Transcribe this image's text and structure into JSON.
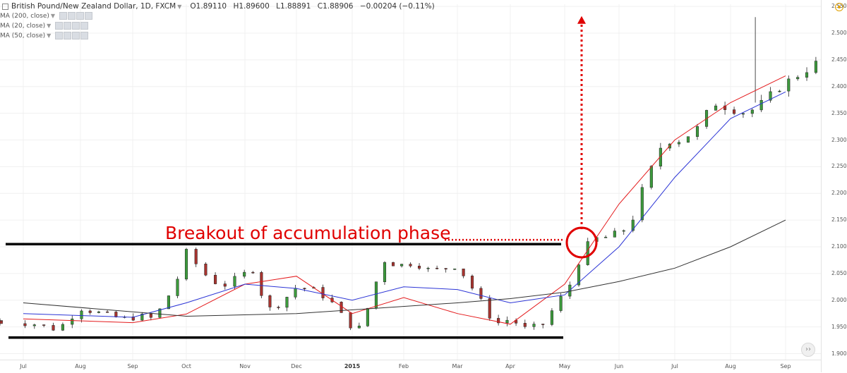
{
  "legend": {
    "symbol": "British Pound/New Zealand Dollar, 1D, FXCM",
    "open": "O1.89110",
    "high": "H1.89600",
    "low": "L1.88891",
    "close": "C1.88906",
    "change": "−0.00204 (−0.11%)",
    "ma_200": "MA (200, close)",
    "ma_20": "MA (20, close)",
    "ma_50": "MA (50, close)"
  },
  "annotation": {
    "label": "Breakout of accumulation phase",
    "color": "#e00000"
  },
  "colors": {
    "up_candle": "#3c9a3c",
    "down_candle": "#a8342f",
    "ma_20": "#e41a1c",
    "ma_50": "#2c35d6",
    "ma_200": "#333333",
    "support_resistance": "#000000"
  },
  "chart_data": {
    "type": "candlestick",
    "title": "British Pound/New Zealand Dollar, 1D, FXCM",
    "y_ticks": [
      "2.55000",
      "2.50000",
      "2.45000",
      "2.40000",
      "2.35000",
      "2.30000",
      "2.25000",
      "2.20000",
      "2.15000",
      "2.10000",
      "2.05000",
      "2.00000",
      "1.95000",
      "1.90000"
    ],
    "x_ticks": [
      "Jul",
      "Aug",
      "Sep",
      "Oct",
      "Nov",
      "Dec",
      "2015",
      "Feb",
      "Mar",
      "Apr",
      "May",
      "Jun",
      "Jul",
      "Aug",
      "Sep"
    ],
    "ylim": [
      1.9,
      2.55
    ],
    "resistance_level": 2.105,
    "support_level": 1.93,
    "series": [
      {
        "name": "MA (20, close)",
        "points": [
          [
            0,
            1.965
          ],
          [
            2,
            1.958
          ],
          [
            3,
            1.974
          ],
          [
            4,
            2.03
          ],
          [
            5,
            2.045
          ],
          [
            6,
            1.975
          ],
          [
            7,
            2.005
          ],
          [
            8,
            1.975
          ],
          [
            9,
            1.955
          ],
          [
            10,
            2.03
          ],
          [
            11,
            2.18
          ],
          [
            12,
            2.3
          ],
          [
            13,
            2.37
          ],
          [
            14,
            2.42
          ]
        ]
      },
      {
        "name": "MA (50, close)",
        "points": [
          [
            0,
            1.975
          ],
          [
            2,
            1.968
          ],
          [
            3,
            1.995
          ],
          [
            4,
            2.03
          ],
          [
            5,
            2.022
          ],
          [
            6,
            2.0
          ],
          [
            7,
            2.025
          ],
          [
            8,
            2.02
          ],
          [
            9,
            1.995
          ],
          [
            10,
            2.01
          ],
          [
            11,
            2.1
          ],
          [
            12,
            2.23
          ],
          [
            13,
            2.34
          ],
          [
            14,
            2.39
          ]
        ]
      },
      {
        "name": "MA (200, close)",
        "points": [
          [
            0,
            1.995
          ],
          [
            3,
            1.97
          ],
          [
            5,
            1.975
          ],
          [
            8,
            1.995
          ],
          [
            9,
            2.003
          ],
          [
            10,
            2.015
          ],
          [
            11,
            2.035
          ],
          [
            12,
            2.06
          ],
          [
            13,
            2.1
          ],
          [
            14,
            2.15
          ]
        ]
      }
    ]
  }
}
